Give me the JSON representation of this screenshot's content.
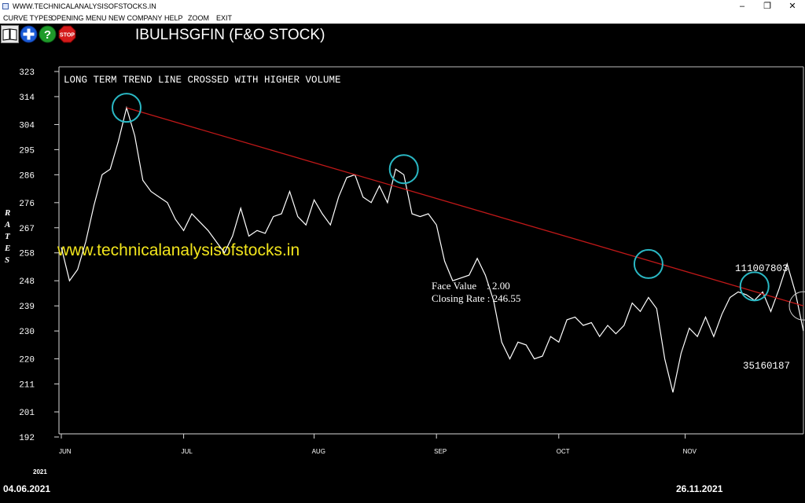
{
  "window": {
    "title": "WWW.TECHNICALANALYSISOFSTOCKS.IN",
    "controls": {
      "minimize": "–",
      "restore": "❐",
      "close": "✕"
    }
  },
  "menu": {
    "items": [
      "CURVE TYPES",
      "OPENING MENU",
      "NEW COMPANY",
      "HELP",
      "ZOOM",
      "EXIT"
    ]
  },
  "toolbar": {
    "icons": [
      "book-icon",
      "plus-icon",
      "help-icon",
      "stop-icon"
    ],
    "stop_label": "STOP",
    "help_label": "?"
  },
  "stock_title": "IBULHSGFIN (F&O STOCK)",
  "chart_data": {
    "type": "line",
    "annotation": "LONG TERM TREND LINE CROSSED WITH HIGHER VOLUME",
    "watermark": "www.technicalanalysisofstocks.in",
    "ylabel": "RATES",
    "yticks": [
      192,
      201,
      211,
      220,
      230,
      239,
      248,
      258,
      267,
      276,
      286,
      295,
      304,
      314,
      323
    ],
    "ylim": [
      192,
      323
    ],
    "xlim": [
      "2021-06-01",
      "2021-11-30"
    ],
    "x_month_labels": [
      {
        "label": "JUN",
        "date": "2021-06-01"
      },
      {
        "label": "JUL",
        "date": "2021-07-01"
      },
      {
        "label": "AUG",
        "date": "2021-08-02"
      },
      {
        "label": "SEP",
        "date": "2021-09-01"
      },
      {
        "label": "OCT",
        "date": "2021-10-01"
      },
      {
        "label": "NOV",
        "date": "2021-11-01"
      }
    ],
    "info": {
      "face_value": "Face Value    : 2.00",
      "closing_rate": "Closing Rate : 246.55"
    },
    "volume_labels": {
      "upper": "111007803",
      "lower": "35160187"
    },
    "series": [
      {
        "color": "#ffffff",
        "points": [
          [
            "2021-06-01",
            260
          ],
          [
            "2021-06-03",
            248
          ],
          [
            "2021-06-05",
            252
          ],
          [
            "2021-06-07",
            262
          ],
          [
            "2021-06-09",
            275
          ],
          [
            "2021-06-11",
            286
          ],
          [
            "2021-06-13",
            288
          ],
          [
            "2021-06-15",
            298
          ],
          [
            "2021-06-17",
            310
          ],
          [
            "2021-06-19",
            300
          ],
          [
            "2021-06-21",
            284
          ],
          [
            "2021-06-23",
            280
          ],
          [
            "2021-06-25",
            278
          ],
          [
            "2021-06-27",
            276
          ],
          [
            "2021-06-29",
            270
          ],
          [
            "2021-07-01",
            266
          ],
          [
            "2021-07-03",
            272
          ],
          [
            "2021-07-05",
            269
          ],
          [
            "2021-07-07",
            266
          ],
          [
            "2021-07-09",
            262
          ],
          [
            "2021-07-11",
            258
          ],
          [
            "2021-07-13",
            264
          ],
          [
            "2021-07-15",
            274
          ],
          [
            "2021-07-17",
            264
          ],
          [
            "2021-07-19",
            266
          ],
          [
            "2021-07-21",
            265
          ],
          [
            "2021-07-23",
            271
          ],
          [
            "2021-07-25",
            272
          ],
          [
            "2021-07-27",
            280
          ],
          [
            "2021-07-29",
            271
          ],
          [
            "2021-07-31",
            268
          ],
          [
            "2021-08-02",
            277
          ],
          [
            "2021-08-04",
            272
          ],
          [
            "2021-08-06",
            268
          ],
          [
            "2021-08-08",
            278
          ],
          [
            "2021-08-10",
            285
          ],
          [
            "2021-08-12",
            286
          ],
          [
            "2021-08-14",
            278
          ],
          [
            "2021-08-16",
            276
          ],
          [
            "2021-08-18",
            282
          ],
          [
            "2021-08-20",
            276
          ],
          [
            "2021-08-22",
            288
          ],
          [
            "2021-08-24",
            286
          ],
          [
            "2021-08-26",
            272
          ],
          [
            "2021-08-28",
            271
          ],
          [
            "2021-08-30",
            272
          ],
          [
            "2021-09-01",
            268
          ],
          [
            "2021-09-03",
            255
          ],
          [
            "2021-09-05",
            248
          ],
          [
            "2021-09-07",
            249
          ],
          [
            "2021-09-09",
            250
          ],
          [
            "2021-09-11",
            256
          ],
          [
            "2021-09-13",
            250
          ],
          [
            "2021-09-15",
            241
          ],
          [
            "2021-09-17",
            226
          ],
          [
            "2021-09-19",
            220
          ],
          [
            "2021-09-21",
            226
          ],
          [
            "2021-09-23",
            225
          ],
          [
            "2021-09-25",
            220
          ],
          [
            "2021-09-27",
            221
          ],
          [
            "2021-09-29",
            228
          ],
          [
            "2021-10-01",
            226
          ],
          [
            "2021-10-03",
            234
          ],
          [
            "2021-10-05",
            235
          ],
          [
            "2021-10-07",
            232
          ],
          [
            "2021-10-09",
            233
          ],
          [
            "2021-10-11",
            228
          ],
          [
            "2021-10-13",
            232
          ],
          [
            "2021-10-15",
            229
          ],
          [
            "2021-10-17",
            232
          ],
          [
            "2021-10-19",
            240
          ],
          [
            "2021-10-21",
            237
          ],
          [
            "2021-10-23",
            242
          ],
          [
            "2021-10-25",
            238
          ],
          [
            "2021-10-27",
            220
          ],
          [
            "2021-10-29",
            208
          ],
          [
            "2021-10-31",
            222
          ],
          [
            "2021-11-02",
            231
          ],
          [
            "2021-11-04",
            228
          ],
          [
            "2021-11-06",
            235
          ],
          [
            "2021-11-08",
            228
          ],
          [
            "2021-11-10",
            236
          ],
          [
            "2021-11-12",
            242
          ],
          [
            "2021-11-14",
            244
          ],
          [
            "2021-11-16",
            243
          ],
          [
            "2021-11-18",
            241
          ],
          [
            "2021-11-20",
            244
          ],
          [
            "2021-11-22",
            237
          ],
          [
            "2021-11-24",
            245
          ],
          [
            "2021-11-26",
            254
          ],
          [
            "2021-11-28",
            244
          ],
          [
            "2021-11-30",
            230
          ]
        ]
      }
    ],
    "trend_line": {
      "color": "#c01818",
      "from": [
        "2021-06-17",
        310
      ],
      "to": [
        "2021-11-30",
        239
      ]
    },
    "marked_points": [
      [
        "2021-06-17",
        310
      ],
      [
        "2021-08-24",
        288
      ],
      [
        "2021-10-23",
        254
      ],
      [
        "2021-11-18",
        246
      ],
      [
        "2021-11-30",
        239
      ]
    ]
  },
  "footer": {
    "year": "2021",
    "start_date": "04.06.2021",
    "end_date": "26.11.2021"
  }
}
